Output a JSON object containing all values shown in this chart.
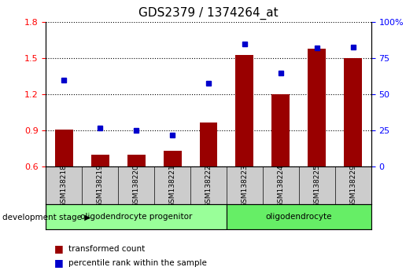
{
  "title": "GDS2379 / 1374264_at",
  "samples": [
    "GSM138218",
    "GSM138219",
    "GSM138220",
    "GSM138221",
    "GSM138222",
    "GSM138223",
    "GSM138224",
    "GSM138225",
    "GSM138229"
  ],
  "transformed_count": [
    0.91,
    0.7,
    0.7,
    0.73,
    0.97,
    1.53,
    1.2,
    1.58,
    1.5
  ],
  "percentile_rank": [
    60,
    27,
    25,
    22,
    58,
    85,
    65,
    82,
    83
  ],
  "ylim_left": [
    0.6,
    1.8
  ],
  "ylim_right": [
    0,
    100
  ],
  "yticks_left": [
    0.6,
    0.9,
    1.2,
    1.5,
    1.8
  ],
  "yticks_right": [
    0,
    25,
    50,
    75,
    100
  ],
  "bar_color": "#990000",
  "dot_color": "#0000cc",
  "groups": [
    {
      "label": "oligodendrocyte progenitor",
      "start": 0,
      "end": 5,
      "color": "#99ff99"
    },
    {
      "label": "oligodendrocyte",
      "start": 5,
      "end": 9,
      "color": "#66ee66"
    }
  ],
  "group_label_prefix": "development stage",
  "legend_bar_label": "transformed count",
  "legend_dot_label": "percentile rank within the sample",
  "tick_area_color": "#cccccc",
  "spine_color": "#000000"
}
